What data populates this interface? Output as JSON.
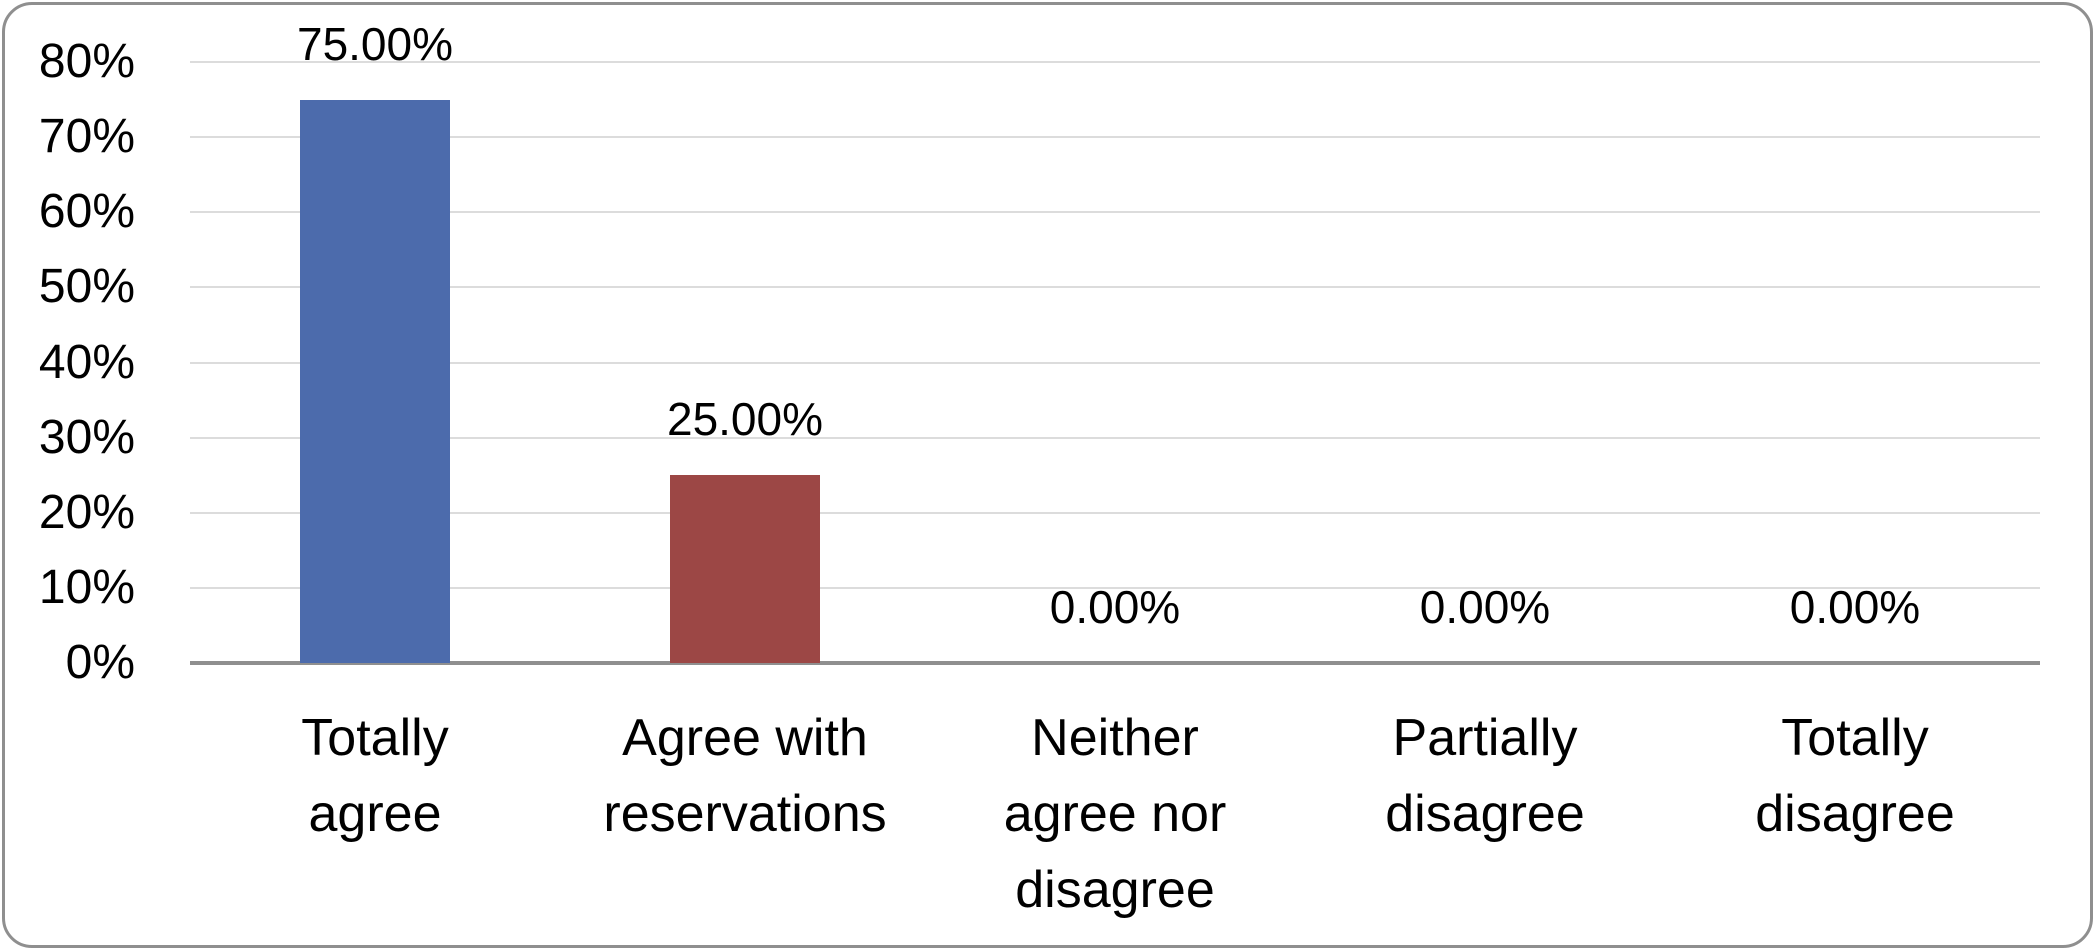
{
  "chart_data": {
    "type": "bar",
    "title": "",
    "xlabel": "",
    "ylabel": "",
    "categories": [
      "Totally agree",
      "Agree with reservations",
      "Neither agree nor disagree",
      "Partially disagree",
      "Totally disagree"
    ],
    "category_label_lines": [
      [
        "Totally",
        "agree"
      ],
      [
        "Agree with",
        "reservations"
      ],
      [
        "Neither",
        "agree nor",
        "disagree"
      ],
      [
        "Partially",
        "disagree"
      ],
      [
        "Totally",
        "disagree"
      ]
    ],
    "values": [
      75.0,
      25.0,
      0.0,
      0.0,
      0.0
    ],
    "data_labels": [
      "75.00%",
      "25.00%",
      "0.00%",
      "0.00%",
      "0.00%"
    ],
    "bar_colors": [
      "#4c6bac",
      "#9c4745",
      null,
      null,
      null
    ],
    "y_axis": {
      "min": 0,
      "max": 80,
      "tick_step": 10,
      "tick_labels": [
        "0%",
        "10%",
        "20%",
        "30%",
        "40%",
        "50%",
        "60%",
        "70%",
        "80%"
      ]
    },
    "grid": true,
    "legend": false,
    "styles": {
      "background": "#ffffff",
      "gridline_color": "#dcdcdc",
      "axis_line_color": "#8f8f8f",
      "border_color": "#8f8f8f",
      "text_color": "#000000"
    }
  }
}
